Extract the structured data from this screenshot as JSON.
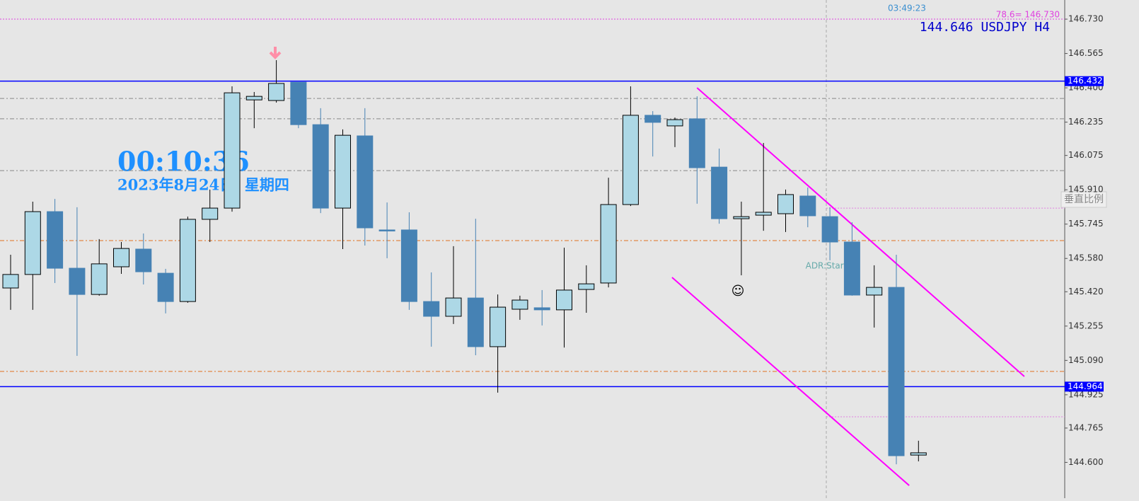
{
  "chart_data": {
    "type": "candlestick",
    "symbol_label": "144.646 USDJPY H4",
    "countdown": "03:49:23",
    "clock": "00:10:36",
    "date": "2023年8月24日, 星期四",
    "annotation": "ADR:Start",
    "fib_label": "78.6= 146.730",
    "scale_button": "垂直比例",
    "up_color": "#add8e6",
    "down_color": "#4682b4",
    "open": [
      145.438,
      145.503,
      145.805,
      145.533,
      145.407,
      145.54,
      145.625,
      145.509,
      145.373,
      145.768,
      145.822,
      146.342,
      146.339,
      146.427,
      146.223,
      145.822,
      146.169,
      145.717,
      145.717,
      145.373,
      145.302,
      145.39,
      145.156,
      145.336,
      145.343,
      145.333,
      145.431,
      145.462,
      145.839,
      146.268,
      146.217,
      146.251,
      146.019,
      145.771,
      145.788,
      145.795,
      145.88,
      145.781,
      145.659,
      145.404,
      145.441,
      144.635
    ],
    "high": [
      145.598,
      145.853,
      145.866,
      145.826,
      145.673,
      145.659,
      145.7,
      145.53,
      145.781,
      145.911,
      146.407,
      146.38,
      146.533,
      146.427,
      146.302,
      146.2,
      146.302,
      145.849,
      145.802,
      145.513,
      145.639,
      145.771,
      145.407,
      145.401,
      145.428,
      145.632,
      145.547,
      145.968,
      146.407,
      146.288,
      146.257,
      146.359,
      146.108,
      145.853,
      146.135,
      145.911,
      145.921,
      145.826,
      145.754,
      145.547,
      145.598,
      144.704
    ],
    "low": [
      145.333,
      145.333,
      145.462,
      145.112,
      145.401,
      145.506,
      145.455,
      145.316,
      145.367,
      145.659,
      145.805,
      146.206,
      146.329,
      146.206,
      145.798,
      145.625,
      145.642,
      145.581,
      145.333,
      145.156,
      145.265,
      145.115,
      144.935,
      145.285,
      145.258,
      145.152,
      145.319,
      145.441,
      145.832,
      146.07,
      146.115,
      145.843,
      145.747,
      145.499,
      145.713,
      145.707,
      145.73,
      145.571,
      145.401,
      145.248,
      144.591,
      144.605
    ],
    "close": [
      145.503,
      145.805,
      145.533,
      145.407,
      145.554,
      145.628,
      145.516,
      145.373,
      145.768,
      145.822,
      146.376,
      146.359,
      146.421,
      146.223,
      145.822,
      146.172,
      145.727,
      145.713,
      145.373,
      145.302,
      145.39,
      145.156,
      145.346,
      145.38,
      145.333,
      145.428,
      145.458,
      145.839,
      146.268,
      146.234,
      146.247,
      146.016,
      145.771,
      145.781,
      145.802,
      145.887,
      145.785,
      145.659,
      145.404,
      145.441,
      144.632,
      144.646
    ],
    "ylim": [
      144.428,
      146.822
    ],
    "yticks": [
      {
        "value": 146.73,
        "label": "146.730"
      },
      146.565,
      {
        "value": 146.4,
        "label": "146.400"
      },
      146.235,
      146.075,
      {
        "value": 145.91,
        "label": "145.910"
      },
      145.745,
      {
        "value": 145.58,
        "label": "145.580"
      },
      {
        "value": 145.42,
        "label": "145.420"
      },
      145.255,
      {
        "value": 145.09,
        "label": "145.090"
      },
      144.925,
      144.765,
      {
        "value": 144.6,
        "label": "144.600"
      }
    ],
    "grid": false,
    "levels": [
      {
        "value": 146.73,
        "color": "#e040e0",
        "style": "dotted"
      },
      {
        "value": 146.432,
        "color": "#0000ff",
        "style": "solid",
        "show_label": true
      },
      {
        "value": 146.349,
        "color": "#888888",
        "style": "dashdot"
      },
      {
        "value": 146.251,
        "color": "#888888",
        "style": "dashdot"
      },
      {
        "value": 146.002,
        "color": "#888888",
        "style": "dashdot"
      },
      {
        "value": 145.822,
        "color": "#e080e0",
        "style": "dotted",
        "from": 36.84
      },
      {
        "value": 145.666,
        "color": "#e07020",
        "style": "dashdot"
      },
      {
        "value": 145.037,
        "color": "#e07020",
        "style": "dashdot"
      },
      {
        "value": 144.964,
        "color": "#0000ff",
        "style": "solid",
        "show_label": true
      },
      {
        "value": 144.819,
        "color": "#e080e0",
        "style": "dotted",
        "from": 36.84
      }
    ],
    "trendlines": [
      {
        "color": "#ff00ff",
        "points": [
          [
            31,
            146.4
          ],
          [
            45.78,
            145.013
          ]
        ]
      },
      {
        "color": "#ff00ff",
        "points": [
          [
            29.87,
            145.489
          ],
          [
            40.58,
            144.489
          ]
        ]
      }
    ]
  }
}
